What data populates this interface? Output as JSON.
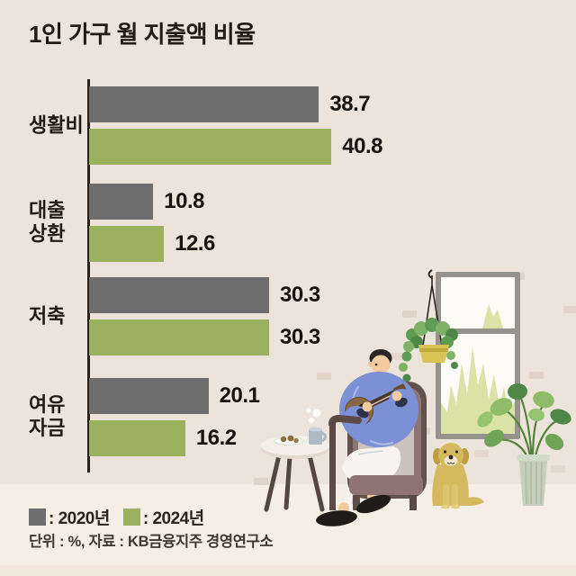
{
  "title": "1인 가구 월 지출액 비율",
  "chart_data": {
    "type": "bar",
    "orientation": "horizontal",
    "title": "1인 가구 월 지출액 비율",
    "unit": "%",
    "categories": [
      "생활비",
      "대출 상환",
      "저축",
      "여유 자금"
    ],
    "category_lines": [
      [
        "생활비"
      ],
      [
        "대출",
        "상환"
      ],
      [
        "저축"
      ],
      [
        "여유",
        "자금"
      ]
    ],
    "series": [
      {
        "name": "2020년",
        "color": "#6E6E6E",
        "values": [
          38.7,
          10.8,
          30.3,
          20.1
        ]
      },
      {
        "name": "2024년",
        "color": "#9BB15F",
        "values": [
          40.8,
          12.6,
          30.3,
          16.2
        ]
      }
    ],
    "xlim": [
      0,
      43
    ],
    "value_labels": true,
    "axis_color": "#26211B",
    "legend_position": "bottom-left",
    "grid": false
  },
  "legend": {
    "items": [
      {
        "label": ": 2020년",
        "color": "#6E6E6E"
      },
      {
        "label": ": 2024년",
        "color": "#9BB15F"
      }
    ]
  },
  "footnote": "단위 : %, 자료 : KB금융지주 경영연구소",
  "illustration": {
    "scene": "거실에서 우쿨렐레를 연주하는 1인 가구와 강아지",
    "elements": [
      "window",
      "hanging-plant",
      "brick-wall",
      "armchair",
      "person-playing-ukulele",
      "side-table",
      "mug",
      "cookie-plate",
      "slippers",
      "dog",
      "potted-plant",
      "floor"
    ]
  }
}
